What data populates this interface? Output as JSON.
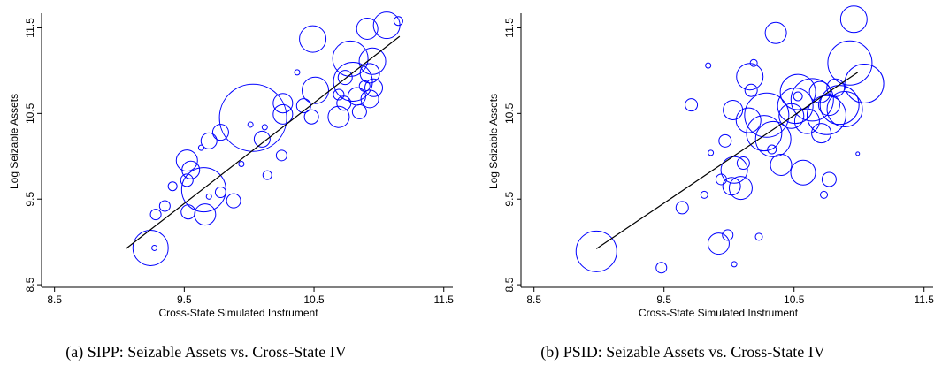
{
  "chart_data": [
    {
      "type": "scatter",
      "caption": "(a)  SIPP: Seizable Assets vs. Cross-State IV",
      "xlabel": "Cross-State Simulated Instrument",
      "ylabel": "Log Seizable Assets",
      "color": "#0000ff",
      "fit_color": "#000000",
      "xlim": [
        8.4,
        11.57
      ],
      "ylim": [
        8.47,
        11.67
      ],
      "xticks": [
        8.5,
        9.5,
        10.5,
        11.5
      ],
      "yticks": [
        8.5,
        9.5,
        10.5,
        11.5
      ],
      "x": [
        9.24,
        9.27,
        9.28,
        9.35,
        9.41,
        9.52,
        9.55,
        9.52,
        9.53,
        9.65,
        9.66,
        9.69,
        9.63,
        9.69,
        9.78,
        9.78,
        9.88,
        9.94,
        10.01,
        10.03,
        10.1,
        10.12,
        10.14,
        10.25,
        10.26,
        10.26,
        10.37,
        10.42,
        10.48,
        10.49,
        10.51,
        10.69,
        10.69,
        10.73,
        10.74,
        10.78,
        10.8,
        10.83,
        10.85,
        10.89,
        10.91,
        10.93,
        10.93,
        10.95,
        10.96,
        11.06,
        11.15
      ],
      "values": [
        8.93,
        8.93,
        9.32,
        9.42,
        9.65,
        9.95,
        9.84,
        9.72,
        9.35,
        9.61,
        9.32,
        9.53,
        10.1,
        10.18,
        10.28,
        9.58,
        9.48,
        9.91,
        10.37,
        10.45,
        10.2,
        10.34,
        9.78,
        10.01,
        10.62,
        10.49,
        10.98,
        10.59,
        10.46,
        11.37,
        10.77,
        10.46,
        10.72,
        10.62,
        10.92,
        11.14,
        10.87,
        10.7,
        10.52,
        10.82,
        11.49,
        10.97,
        10.67,
        11.11,
        10.8,
        11.53,
        11.58
      ],
      "sizes": [
        20,
        3,
        6,
        6,
        5,
        12,
        10,
        7,
        8,
        25,
        12,
        3,
        3,
        9,
        9,
        6,
        8,
        3,
        3,
        38,
        9,
        3,
        5,
        6,
        11,
        11,
        3,
        8,
        8,
        15,
        15,
        12,
        6,
        8,
        8,
        20,
        22,
        10,
        8,
        6,
        12,
        11,
        10,
        15,
        10,
        15,
        5
      ],
      "fit": {
        "x": [
          9.05,
          11.16
        ],
        "y": [
          8.92,
          11.4
        ]
      }
    },
    {
      "type": "scatter",
      "caption": "(b)  PSID: Seizable Assets vs. Cross-State IV",
      "xlabel": "Cross-State Simulated Instrument",
      "ylabel": "Log Seizable Assets",
      "color": "#0000ff",
      "fit_color": "#000000",
      "xlim": [
        8.4,
        11.57
      ],
      "ylim": [
        8.47,
        11.67
      ],
      "xticks": [
        8.5,
        9.5,
        10.5,
        11.5
      ],
      "yticks": [
        8.5,
        9.5,
        10.5,
        11.5
      ],
      "x": [
        8.98,
        9.48,
        9.64,
        9.71,
        9.84,
        9.81,
        9.86,
        9.92,
        9.94,
        9.97,
        9.99,
        10.02,
        10.03,
        10.04,
        10.04,
        10.09,
        10.11,
        10.15,
        10.16,
        10.17,
        10.19,
        10.23,
        10.27,
        10.29,
        10.33,
        10.34,
        10.36,
        10.4,
        10.48,
        10.51,
        10.53,
        10.53,
        10.57,
        10.6,
        10.64,
        10.7,
        10.71,
        10.73,
        10.75,
        10.77,
        10.77,
        10.82,
        10.85,
        10.89,
        10.99,
        10.96,
        10.93,
        11.04
      ],
      "values": [
        8.89,
        8.7,
        9.4,
        10.6,
        11.06,
        9.55,
        10.04,
        8.98,
        9.73,
        10.18,
        9.08,
        9.65,
        10.54,
        8.74,
        9.84,
        9.63,
        9.92,
        10.42,
        10.93,
        10.77,
        11.09,
        9.06,
        10.27,
        10.48,
        10.08,
        10.2,
        11.44,
        9.9,
        10.47,
        10.59,
        10.7,
        10.75,
        9.81,
        10.41,
        10.66,
        10.75,
        10.27,
        9.55,
        10.48,
        10.6,
        9.73,
        10.8,
        10.6,
        10.55,
        10.03,
        11.6,
        11.09,
        10.85
      ],
      "sizes": [
        23,
        6,
        7,
        7,
        3,
        4,
        3,
        12,
        6,
        7,
        6,
        10,
        11,
        3,
        15,
        13,
        7,
        14,
        15,
        7,
        4,
        4,
        20,
        25,
        5,
        20,
        12,
        12,
        14,
        20,
        5,
        20,
        14,
        14,
        24,
        12,
        11,
        4,
        22,
        12,
        8,
        10,
        22,
        20,
        2,
        15,
        25,
        22
      ],
      "fit": {
        "x": [
          8.98,
          10.99
        ],
        "y": [
          8.92,
          10.98
        ]
      }
    }
  ]
}
